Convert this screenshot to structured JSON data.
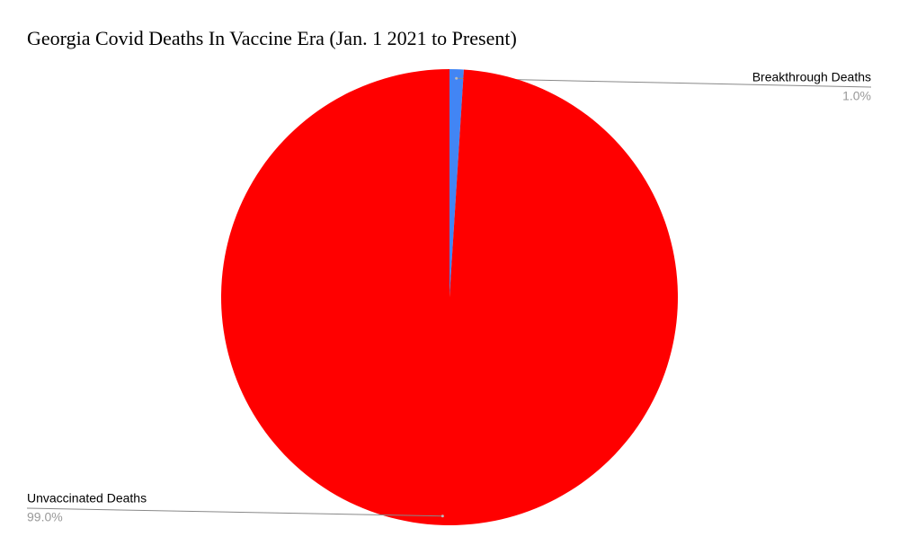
{
  "chart_data": {
    "type": "pie",
    "title": "Georgia Covid Deaths In Vaccine Era (Jan. 1 2021 to Present)",
    "categories": [
      "Breakthrough Deaths",
      "Unvaccinated Deaths"
    ],
    "values": [
      1.0,
      99.0
    ],
    "value_labels": [
      "1.0%",
      "99.0%"
    ],
    "colors": [
      "#4285f4",
      "#ff0000"
    ]
  }
}
